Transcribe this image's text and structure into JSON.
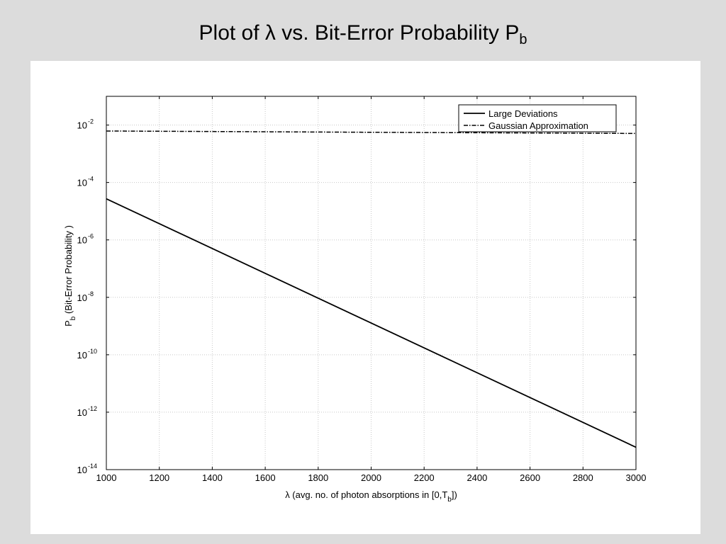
{
  "slide": {
    "title_main": "Plot of λ vs. Bit-Error Probability P",
    "title_sub": "b"
  },
  "chart_data": {
    "type": "line",
    "title": "Plot of λ vs. Bit-Error Probability Pb",
    "xlabel": "λ (avg. no. of photon absorptions in [0,Tb])",
    "ylabel": "Pb (Bit-Error Probability )",
    "xlim": [
      1000,
      3000
    ],
    "ylim": [
      1e-14,
      0.1
    ],
    "y_scale": "log",
    "grid": true,
    "legend_position": "top-right",
    "x_ticks": [
      1000,
      1200,
      1400,
      1600,
      1800,
      2000,
      2200,
      2400,
      2600,
      2800,
      3000
    ],
    "y_ticks": [
      {
        "exp": "-14",
        "value": 1e-14
      },
      {
        "exp": "-12",
        "value": 1e-12
      },
      {
        "exp": "-10",
        "value": 1e-10
      },
      {
        "exp": "-8",
        "value": 1e-08
      },
      {
        "exp": "-6",
        "value": 1e-06
      },
      {
        "exp": "-4",
        "value": 0.0001
      },
      {
        "exp": "-2",
        "value": 0.01
      }
    ],
    "series": [
      {
        "name": "Large Deviations",
        "style": "solid",
        "color": "#000000",
        "x": [
          1000,
          3000
        ],
        "y": [
          2.7e-05,
          6e-14
        ]
      },
      {
        "name": "Gaussian Approximation",
        "style": "dashdot",
        "color": "#000000",
        "x": [
          1000,
          2000,
          3000
        ],
        "y": [
          0.0062,
          0.0056,
          0.0051
        ]
      }
    ]
  }
}
